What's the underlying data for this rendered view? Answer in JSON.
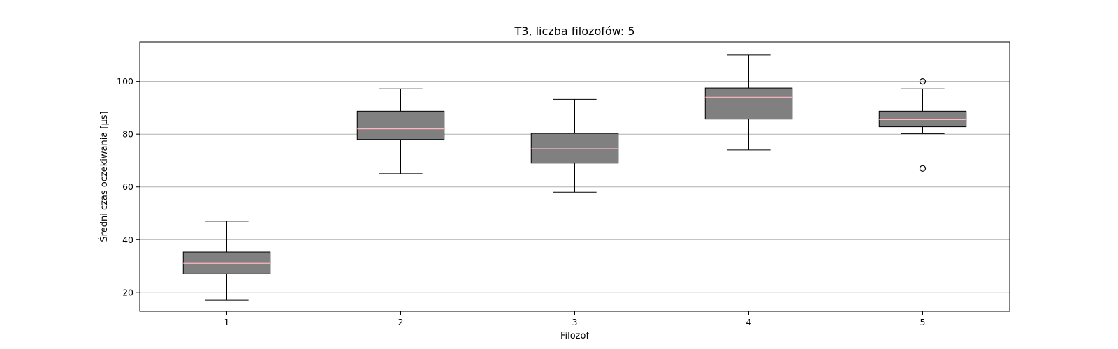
{
  "chart_data": {
    "type": "boxplot",
    "title": "T3, liczba filozofów: 5",
    "xlabel": "Filozof",
    "ylabel": "Średni czas oczekiwania [µs]",
    "ylim": [
      12.8,
      115
    ],
    "yticks": [
      20,
      40,
      60,
      80,
      100
    ],
    "grid": {
      "axis": "y",
      "color": "#b0b0b0"
    },
    "categories": [
      "1",
      "2",
      "3",
      "4",
      "5"
    ],
    "boxes": [
      {
        "whisker_low": 17,
        "q1": 27,
        "median": 31,
        "q3": 35.3,
        "whisker_high": 47,
        "outliers": []
      },
      {
        "whisker_low": 65,
        "q1": 78,
        "median": 82,
        "q3": 88.7,
        "whisker_high": 97.2,
        "outliers": []
      },
      {
        "whisker_low": 58,
        "q1": 69,
        "median": 74.5,
        "q3": 80.3,
        "whisker_high": 93.2,
        "outliers": []
      },
      {
        "whisker_low": 74,
        "q1": 85.7,
        "median": 94,
        "q3": 97.5,
        "whisker_high": 110,
        "outliers": []
      },
      {
        "whisker_low": 80.2,
        "q1": 82.8,
        "median": 85.5,
        "q3": 88.7,
        "whisker_high": 97.2,
        "outliers": [
          100,
          67
        ]
      }
    ],
    "colors": {
      "box_fill": "#808080",
      "median": "#ffb6c1",
      "line": "#000000"
    }
  }
}
